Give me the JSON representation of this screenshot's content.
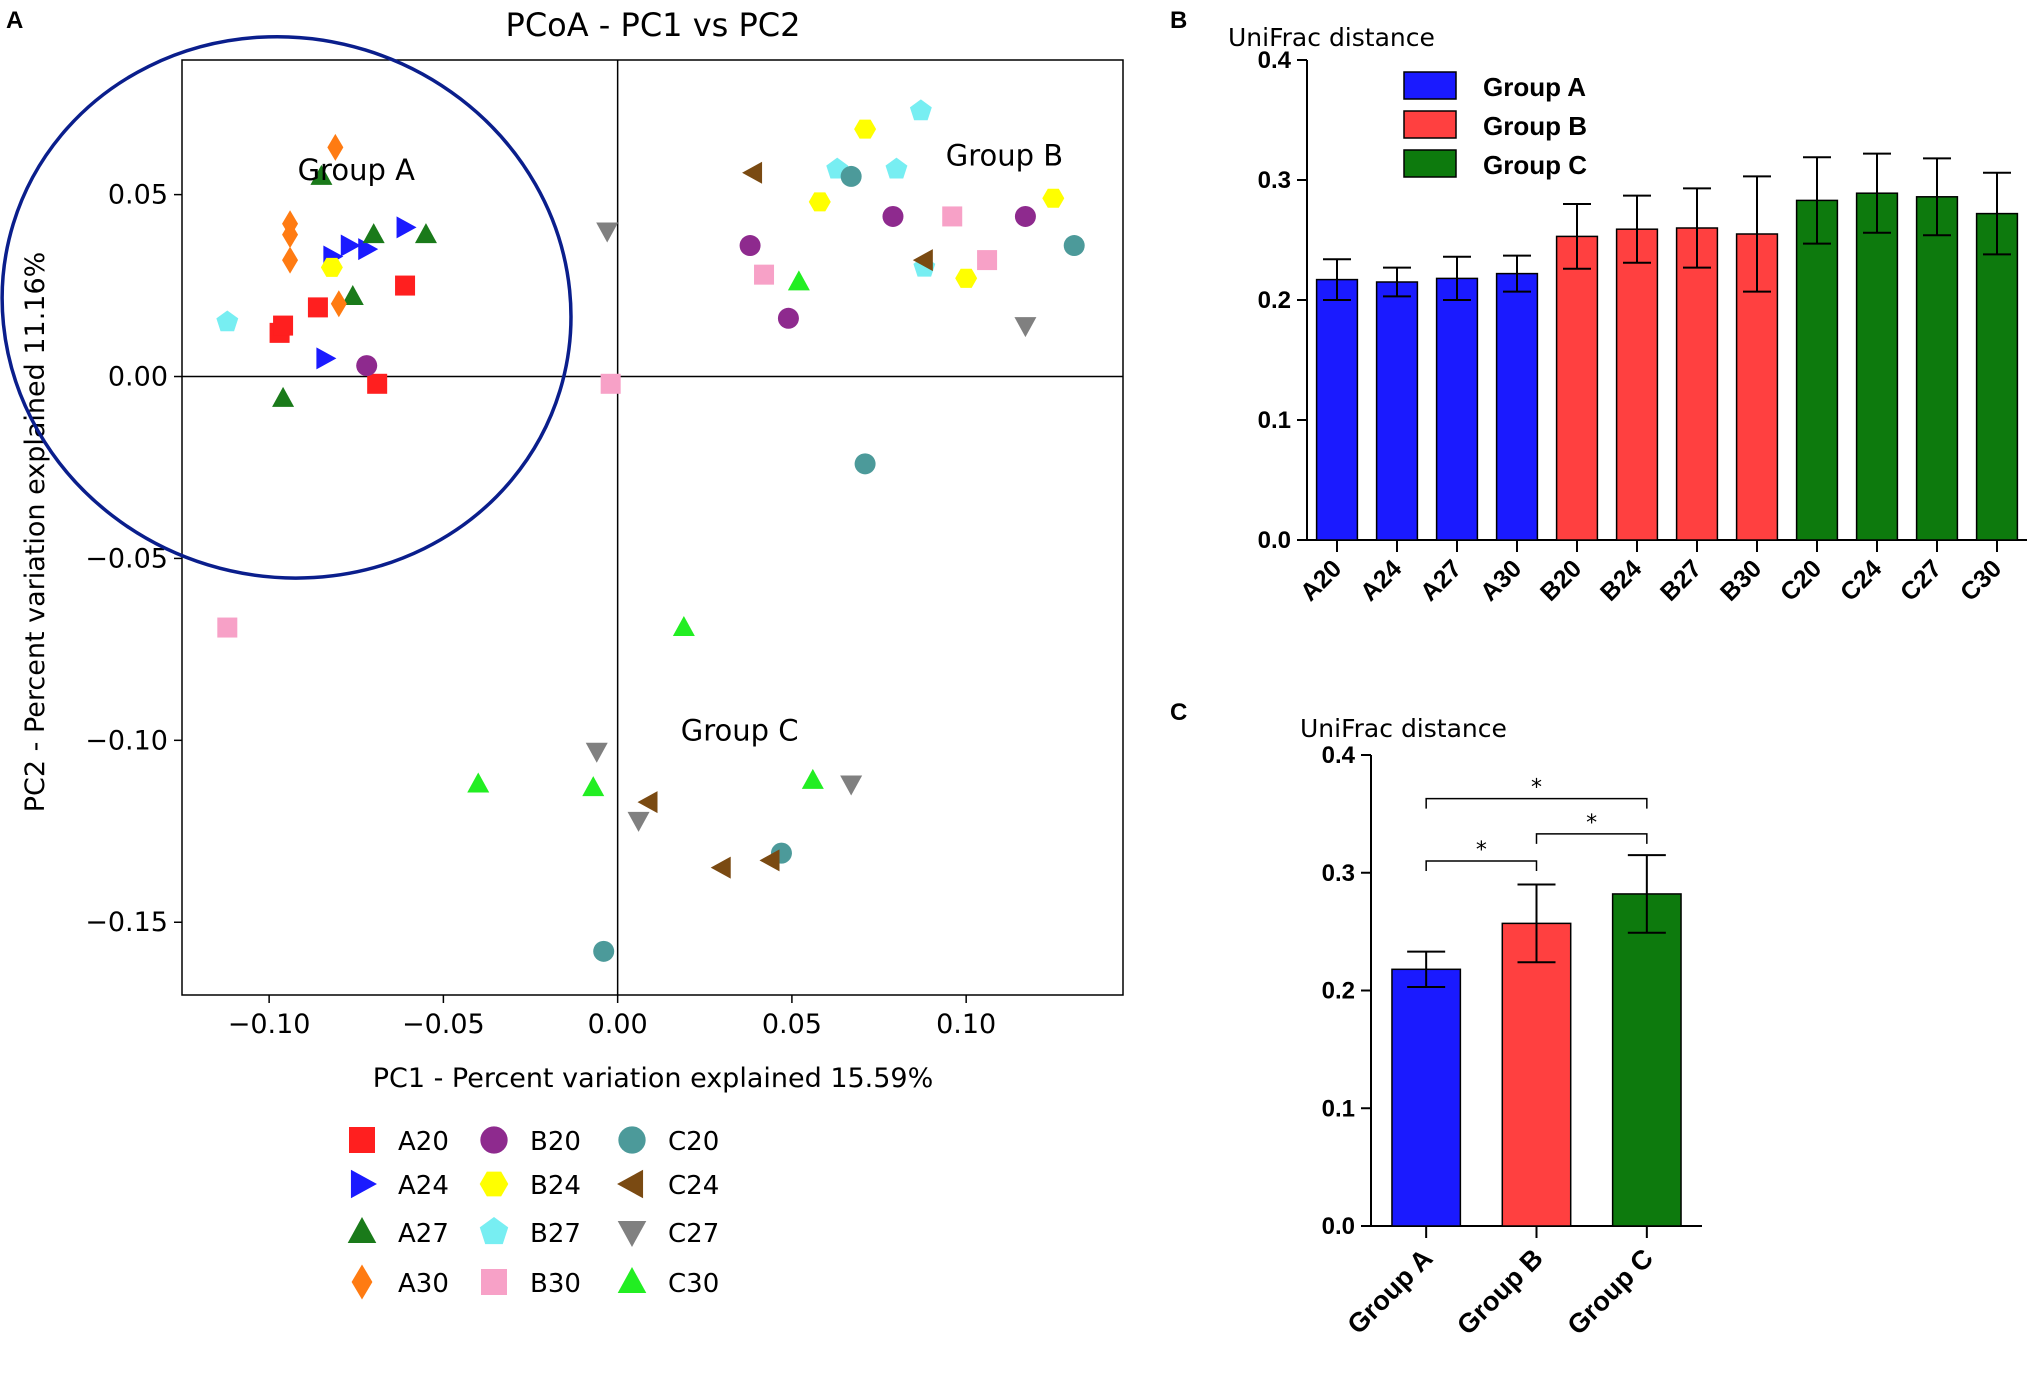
{
  "panel_labels": {
    "a": "A",
    "b": "B",
    "c": "C"
  },
  "chart_data": [
    {
      "id": "A",
      "type": "scatter",
      "title": "PCoA - PC1 vs PC2",
      "xlabel": "PC1 - Percent variation explained 15.59%",
      "ylabel": "PC2 - Percent variation explained 11.16%",
      "xlim": [
        -0.125,
        0.145
      ],
      "ylim": [
        -0.17,
        0.087
      ],
      "xticks": [
        -0.1,
        -0.05,
        0.0,
        0.05,
        0.1
      ],
      "xtick_labels": [
        "−0.10",
        "−0.05",
        "0.00",
        "0.05",
        "0.10"
      ],
      "yticks": [
        0.05,
        0.0,
        -0.05,
        -0.1,
        -0.15
      ],
      "ytick_labels": [
        "0.05",
        "0.00",
        "−0.05",
        "−0.10",
        "−0.15"
      ],
      "group_labels": [
        {
          "text": "Group A",
          "x": -0.075,
          "y": 0.054
        },
        {
          "text": "Group B",
          "x": 0.111,
          "y": 0.058
        },
        {
          "text": "Group C",
          "x": 0.035,
          "y": -0.1
        }
      ],
      "ellipse": {
        "cx": -0.095,
        "cy": 0.019,
        "rx": 0.082,
        "ry": 0.074,
        "rotate_deg": 17,
        "color": "#0a1e8c"
      },
      "series": [
        {
          "name": "A20",
          "marker": "square",
          "color": "#ff1f1f",
          "points": [
            [
              -0.097,
              0.012
            ],
            [
              -0.096,
              0.014
            ],
            [
              -0.086,
              0.019
            ],
            [
              -0.061,
              0.025
            ],
            [
              -0.069,
              -0.002
            ]
          ]
        },
        {
          "name": "A24",
          "marker": "triangle-right",
          "color": "#1a1aff",
          "points": [
            [
              -0.082,
              0.033
            ],
            [
              -0.077,
              0.036
            ],
            [
              -0.072,
              0.035
            ],
            [
              -0.061,
              0.041
            ],
            [
              -0.084,
              0.005
            ]
          ]
        },
        {
          "name": "A27",
          "marker": "triangle-up",
          "color": "#1a7a1a",
          "points": [
            [
              -0.085,
              0.055
            ],
            [
              -0.07,
              0.039
            ],
            [
              -0.055,
              0.039
            ],
            [
              -0.076,
              0.022
            ],
            [
              -0.096,
              -0.006
            ]
          ]
        },
        {
          "name": "A30",
          "marker": "diamond",
          "color": "#ff7b12",
          "points": [
            [
              -0.081,
              0.063
            ],
            [
              -0.094,
              0.042
            ],
            [
              -0.094,
              0.039
            ],
            [
              -0.094,
              0.032
            ],
            [
              -0.08,
              0.02
            ]
          ]
        },
        {
          "name": "B20",
          "marker": "circle",
          "color": "#8e2a8e",
          "points": [
            [
              -0.072,
              0.003
            ],
            [
              0.038,
              0.036
            ],
            [
              0.049,
              0.016
            ],
            [
              0.079,
              0.044
            ],
            [
              0.117,
              0.044
            ]
          ]
        },
        {
          "name": "B24",
          "marker": "hexagon",
          "color": "#ffff00",
          "points": [
            [
              -0.082,
              0.03
            ],
            [
              0.058,
              0.048
            ],
            [
              0.071,
              0.068
            ],
            [
              0.1,
              0.027
            ],
            [
              0.125,
              0.049
            ]
          ]
        },
        {
          "name": "B27",
          "marker": "pentagon",
          "color": "#77eef2",
          "points": [
            [
              -0.112,
              0.015
            ],
            [
              0.063,
              0.057
            ],
            [
              0.08,
              0.057
            ],
            [
              0.087,
              0.073
            ],
            [
              0.088,
              0.03
            ]
          ]
        },
        {
          "name": "B30",
          "marker": "square",
          "color": "#f7a1c7",
          "points": [
            [
              -0.112,
              -0.069
            ],
            [
              -0.002,
              -0.002
            ],
            [
              0.042,
              0.028
            ],
            [
              0.096,
              0.044
            ],
            [
              0.106,
              0.032
            ]
          ]
        },
        {
          "name": "C20",
          "marker": "circle",
          "color": "#4c9a9a",
          "points": [
            [
              0.067,
              0.055
            ],
            [
              0.131,
              0.036
            ],
            [
              0.071,
              -0.024
            ],
            [
              0.047,
              -0.131
            ],
            [
              -0.004,
              -0.158
            ]
          ]
        },
        {
          "name": "C24",
          "marker": "triangle-left",
          "color": "#7a4a12",
          "points": [
            [
              0.039,
              0.056
            ],
            [
              0.088,
              0.032
            ],
            [
              0.009,
              -0.117
            ],
            [
              0.03,
              -0.135
            ],
            [
              0.044,
              -0.133
            ]
          ]
        },
        {
          "name": "C27",
          "marker": "triangle-down",
          "color": "#808080",
          "points": [
            [
              -0.003,
              0.04
            ],
            [
              0.117,
              0.014
            ],
            [
              -0.006,
              -0.103
            ],
            [
              0.006,
              -0.122
            ],
            [
              0.067,
              -0.112
            ]
          ]
        },
        {
          "name": "C30",
          "marker": "triangle-up",
          "color": "#22ee22",
          "points": [
            [
              0.052,
              0.026
            ],
            [
              0.019,
              -0.069
            ],
            [
              -0.04,
              -0.112
            ],
            [
              -0.007,
              -0.113
            ],
            [
              0.056,
              -0.111
            ]
          ]
        }
      ],
      "legend_order": [
        "A20",
        "B20",
        "C20",
        "A24",
        "B24",
        "C24",
        "A27",
        "B27",
        "C27",
        "A30",
        "B30",
        "C30"
      ]
    },
    {
      "id": "B",
      "type": "bar",
      "ylabel": "UniFrac distance",
      "ylim": [
        0,
        0.4
      ],
      "yticks": [
        0.0,
        0.1,
        0.2,
        0.3,
        0.4
      ],
      "ytick_labels": [
        "0.0",
        "0.1",
        "0.2",
        "0.3",
        "0.4"
      ],
      "categories": [
        "A20",
        "A24",
        "A27",
        "A30",
        "B20",
        "B24",
        "B27",
        "B30",
        "C20",
        "C24",
        "C27",
        "C30"
      ],
      "values": [
        0.217,
        0.215,
        0.218,
        0.222,
        0.253,
        0.259,
        0.26,
        0.255,
        0.283,
        0.289,
        0.286,
        0.272
      ],
      "errors": [
        0.017,
        0.012,
        0.018,
        0.015,
        0.027,
        0.028,
        0.033,
        0.048,
        0.036,
        0.033,
        0.032,
        0.034
      ],
      "groups": [
        "Group A",
        "Group A",
        "Group A",
        "Group A",
        "Group B",
        "Group B",
        "Group B",
        "Group B",
        "Group C",
        "Group C",
        "Group C",
        "Group C"
      ],
      "legend": [
        {
          "label": "Group A",
          "color": "#1a1aff"
        },
        {
          "label": "Group B",
          "color": "#ff4040"
        },
        {
          "label": "Group C",
          "color": "#0d7a0d"
        }
      ]
    },
    {
      "id": "C",
      "type": "bar",
      "ylabel": "UniFrac distance",
      "ylim": [
        0,
        0.4
      ],
      "yticks": [
        0.0,
        0.1,
        0.2,
        0.3,
        0.4
      ],
      "ytick_labels": [
        "0.0",
        "0.1",
        "0.2",
        "0.3",
        "0.4"
      ],
      "categories": [
        "Group A",
        "Group B",
        "Group C"
      ],
      "values": [
        0.218,
        0.257,
        0.282
      ],
      "errors": [
        0.015,
        0.033,
        0.033
      ],
      "colors": [
        "#1a1aff",
        "#ff4040",
        "#0d7a0d"
      ],
      "significance": [
        {
          "from": 0,
          "to": 1,
          "label": "*",
          "level": 0.31
        },
        {
          "from": 1,
          "to": 2,
          "label": "*",
          "level": 0.333
        },
        {
          "from": 0,
          "to": 2,
          "label": "*",
          "level": 0.363
        }
      ]
    }
  ]
}
